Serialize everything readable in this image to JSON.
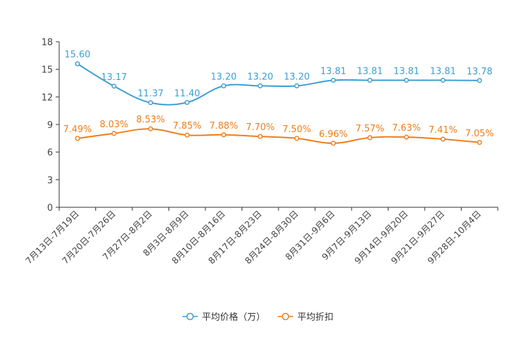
{
  "chart_data": {
    "type": "line",
    "title": "",
    "xlabel": "",
    "ylabel": "",
    "ylim": [
      0,
      18
    ],
    "yticks": [
      0,
      3,
      6,
      9,
      12,
      15,
      18
    ],
    "categories": [
      "7月13日-7月19日",
      "7月20日-7月26日",
      "7月27日-8月2日",
      "8月3日-8月9日",
      "8月10日-8月16日",
      "8月17日-8月23日",
      "8月24日-8月30日",
      "8月31日-9月6日",
      "9月7日-9月13日",
      "9月14日-9月20日",
      "9月21日-9月27日",
      "9月28日-10月4日"
    ],
    "series": [
      {
        "name": "平均价格（万）",
        "color": "#3a9fd4",
        "values": [
          15.6,
          13.17,
          11.37,
          11.4,
          13.2,
          13.2,
          13.2,
          13.81,
          13.81,
          13.81,
          13.81,
          13.78
        ],
        "labels": [
          "15.60",
          "13.17",
          "11.37",
          "11.40",
          "13.20",
          "13.20",
          "13.20",
          "13.81",
          "13.81",
          "13.81",
          "13.81",
          "13.78"
        ]
      },
      {
        "name": "平均折扣",
        "color": "#f07d1a",
        "values": [
          7.49,
          8.03,
          8.53,
          7.85,
          7.88,
          7.7,
          7.5,
          6.96,
          7.57,
          7.63,
          7.41,
          7.05
        ],
        "labels": [
          "7.49%",
          "8.03%",
          "8.53%",
          "7.85%",
          "7.88%",
          "7.70%",
          "7.50%",
          "6.96%",
          "7.57%",
          "7.63%",
          "7.41%",
          "7.05%"
        ]
      }
    ],
    "legend_position": "bottom-center",
    "grid": false
  }
}
